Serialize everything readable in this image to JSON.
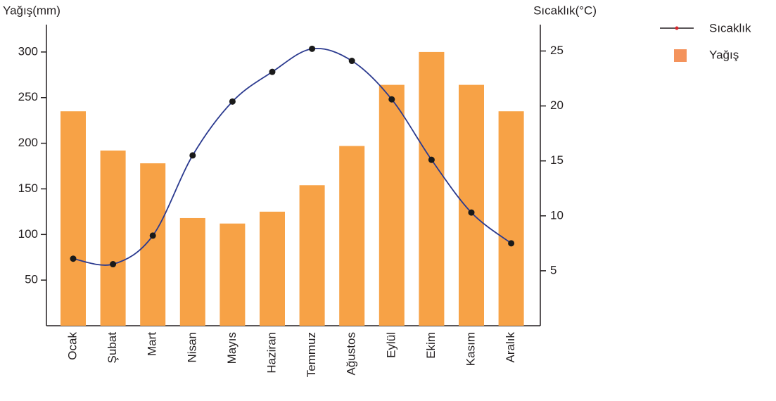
{
  "chart_data": {
    "type": "bar",
    "y_label": "Yağış(mm)",
    "y2_label": "Sıcaklık(°C)",
    "categories": [
      "Ocak",
      "Şubat",
      "Mart",
      "Nisan",
      "Mayıs",
      "Haziran",
      "Temmuz",
      "Ağustos",
      "Eylül",
      "Ekim",
      "Kasım",
      "Aralık"
    ],
    "series": [
      {
        "name": "Sıcaklık",
        "type": "line",
        "axis": "y2",
        "color": "#2b3a8f",
        "values": [
          6.1,
          5.6,
          8.2,
          15.5,
          20.4,
          23.1,
          25.2,
          24.1,
          20.6,
          15.1,
          10.3,
          7.5
        ]
      },
      {
        "name": "Yağış",
        "type": "bar",
        "color": "#f7a246",
        "values": [
          235,
          192,
          178,
          118,
          112,
          125,
          154,
          197,
          264,
          300,
          264,
          235
        ]
      }
    ],
    "ylim": [
      0,
      330
    ],
    "yticks": [
      50,
      100,
      150,
      200,
      250,
      300
    ],
    "y2lim": [
      0,
      27.4
    ],
    "y2ticks": [
      5,
      10,
      15,
      20,
      25
    ],
    "legend": "top-right"
  }
}
